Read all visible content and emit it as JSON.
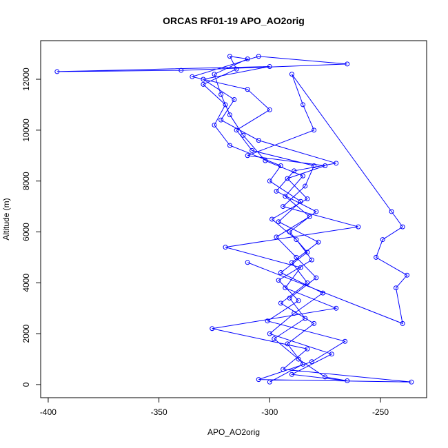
{
  "chart_data": {
    "type": "line",
    "title": "ORCAS RF01-19 APO_AO2orig",
    "xlabel": "APO_AO2orig",
    "ylabel": "Altitude (m)",
    "color": "#0000ff",
    "markers": true,
    "xlim": [
      -403.4,
      -229.15
    ],
    "ylim": [
      -515,
      13517
    ],
    "xticks": [
      -400,
      -350,
      -300,
      -250
    ],
    "yticks": [
      0,
      2000,
      4000,
      6000,
      8000,
      10000,
      12000
    ],
    "x": [
      -300,
      -285,
      -292,
      -280,
      -295,
      -283,
      -290,
      -278,
      -296,
      -286,
      -300,
      -295,
      -318,
      -325,
      -320,
      -330,
      -315,
      -318,
      -310,
      -325,
      -322,
      -318,
      -312,
      -302,
      -285,
      -293,
      -282,
      -297,
      -288,
      -279,
      -291,
      -284,
      -298,
      -287,
      -275,
      -265,
      -290,
      -272,
      -300,
      -289,
      -276,
      -295,
      -283,
      -291,
      -279,
      -297,
      -289,
      -270,
      -305,
      -322,
      -316,
      -330,
      -300,
      -396,
      -340,
      -265,
      -305,
      -335,
      -310,
      -300,
      -315,
      -308,
      -280,
      -284,
      -294,
      -260,
      -320,
      -286,
      -293,
      -270,
      -326,
      -283,
      -294,
      -236,
      -305,
      -281,
      -266,
      -301,
      -287,
      -296,
      -281,
      -288,
      -299,
      -283,
      -292,
      -275,
      -310,
      -280,
      -285,
      -290,
      -245,
      -240,
      -249,
      -252,
      -238,
      -243,
      -240,
      -310
    ],
    "values": [
      100,
      800,
      1600,
      2400,
      3200,
      4000,
      4800,
      5600,
      6400,
      7200,
      8000,
      8600,
      9400,
      10200,
      11000,
      11800,
      12400,
      12900,
      12800,
      12200,
      11400,
      10600,
      9800,
      8800,
      8200,
      7400,
      6600,
      5800,
      5000,
      4200,
      3400,
      2600,
      1800,
      1000,
      300,
      150,
      400,
      1200,
      2000,
      2800,
      3600,
      4400,
      5200,
      6000,
      6800,
      7600,
      8400,
      8700,
      9600,
      10400,
      11200,
      12000,
      12500,
      12300,
      12350,
      12600,
      12900,
      12100,
      11600,
      10800,
      10000,
      9200,
      8600,
      7800,
      7000,
      6200,
      5400,
      4600,
      3800,
      3000,
      2200,
      1400,
      600,
      100,
      200,
      900,
      1700,
      2500,
      3300,
      4100,
      4900,
      5700,
      6500,
      7300,
      8100,
      8600,
      9000,
      10000,
      11000,
      12200,
      6800,
      6200,
      5700,
      5000,
      4300,
      3800,
      2400,
      4800
    ]
  }
}
